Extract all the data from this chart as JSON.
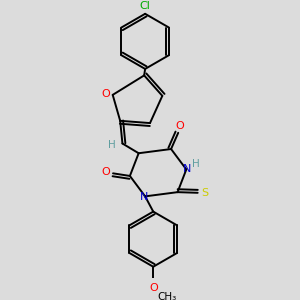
{
  "background_color": "#dcdcdc",
  "atom_colors": {
    "C": "#000000",
    "H": "#5f9ea0",
    "N": "#0000cd",
    "O": "#ff0000",
    "S": "#cccc00",
    "Cl": "#00aa00"
  },
  "bond_lw": 1.4
}
